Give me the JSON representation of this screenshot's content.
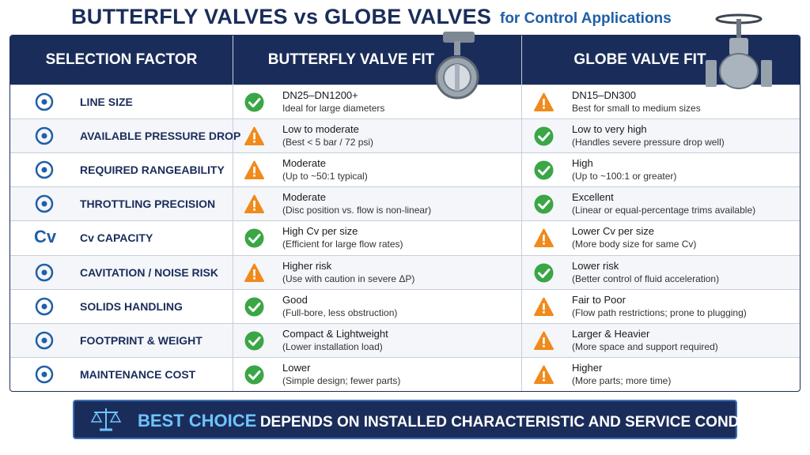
{
  "header": {
    "title": "BUTTERFLY VALVES vs GLOBE VALVES",
    "subtitle": "for Control Applications"
  },
  "table": {
    "columns": [
      "SELECTION FACTOR",
      "BUTTERFLY VALVE FIT",
      "GLOBE VALVE FIT"
    ],
    "rows": [
      {
        "factor": "LINE SIZE",
        "butterfly": {
          "icon": "check",
          "main": "DN25–DN1200+",
          "note": "Ideal for large diameters"
        },
        "globe": {
          "icon": "warning",
          "main": "DN15–DN300",
          "note": "Best for small to medium sizes"
        }
      },
      {
        "factor": "AVAILABLE PRESSURE DROP",
        "butterfly": {
          "icon": "warning",
          "main": "Low to moderate",
          "note": "(Best < 5 bar / 72 psi)"
        },
        "globe": {
          "icon": "check",
          "main": "Low to very high",
          "note": "(Handles severe pressure drop well)"
        }
      },
      {
        "factor": "REQUIRED RANGEABILITY",
        "butterfly": {
          "icon": "warning",
          "main": "Moderate",
          "note": "(Up to ~50:1 typical)"
        },
        "globe": {
          "icon": "check",
          "main": "High",
          "note": "(Up to ~100:1 or greater)"
        }
      },
      {
        "factor": "THROTTLING PRECISION",
        "butterfly": {
          "icon": "warning",
          "main": "Moderate",
          "note": "(Disc position vs. flow is non-linear)"
        },
        "globe": {
          "icon": "check",
          "main": "Excellent",
          "note": "(Linear or equal-percentage trims available)"
        }
      },
      {
        "factor": "Cv CAPACITY",
        "icon_label": "Cv",
        "butterfly": {
          "icon": "check",
          "main": "High Cv per size",
          "note": "(Efficient for large flow rates)"
        },
        "globe": {
          "icon": "warning",
          "main": "Lower Cv per size",
          "note": "(More body size for same Cv)"
        }
      },
      {
        "factor": "CAVITATION / NOISE RISK",
        "butterfly": {
          "icon": "warning",
          "main": "Higher risk",
          "note": "(Use with caution in severe ΔP)"
        },
        "globe": {
          "icon": "check",
          "main": "Lower risk",
          "note": "(Better control of fluid acceleration)"
        }
      },
      {
        "factor": "SOLIDS HANDLING",
        "butterfly": {
          "icon": "check",
          "main": "Good",
          "note": "(Full-bore, less obstruction)"
        },
        "globe": {
          "icon": "warning",
          "main": "Fair to Poor",
          "note": "(Flow path restrictions; prone to plugging)"
        }
      },
      {
        "factor": "FOOTPRINT & WEIGHT",
        "butterfly": {
          "icon": "check",
          "main": "Compact & Lightweight",
          "note": "(Lower installation load)"
        },
        "globe": {
          "icon": "warning",
          "main": "Larger & Heavier",
          "note": "(More space and support required)"
        }
      },
      {
        "factor": "MAINTENANCE COST",
        "butterfly": {
          "icon": "check",
          "main": "Lower",
          "note": "(Simple design; fewer parts)"
        },
        "globe": {
          "icon": "warning",
          "main": "Higher",
          "note": "(More parts; more time)"
        }
      }
    ]
  },
  "footer": {
    "highlight": "BEST CHOICE",
    "text": "DEPENDS ON INSTALLED CHARACTERISTIC AND SERVICE CONDITIONS"
  }
}
